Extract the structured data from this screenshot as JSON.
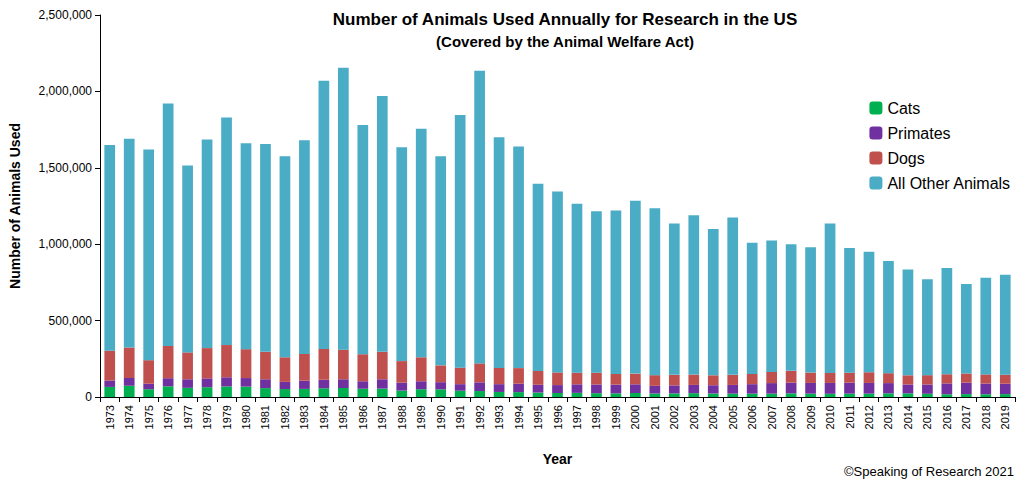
{
  "chart_data": {
    "type": "bar",
    "title": "Number of Animals Used Annually for Research in the US",
    "subtitle": "(Covered by the Animal Welfare Act)",
    "x_label": "Year",
    "y_label": "Number of Animals Used",
    "annotations": [
      "©Speaking of Research 2021"
    ],
    "categories": [
      "1973",
      "1974",
      "1975",
      "1976",
      "1977",
      "1978",
      "1979",
      "1980",
      "1981",
      "1982",
      "1983",
      "1984",
      "1985",
      "1986",
      "1987",
      "1988",
      "1989",
      "1990",
      "1991",
      "1992",
      "1993",
      "1994",
      "1995",
      "1996",
      "1997",
      "1998",
      "1999",
      "2000",
      "2001",
      "2002",
      "2003",
      "2004",
      "2005",
      "2006",
      "2007",
      "2008",
      "2009",
      "2010",
      "2011",
      "2012",
      "2013",
      "2014",
      "2015",
      "2016",
      "2017",
      "2018",
      "2019"
    ],
    "series": [
      {
        "name": "Cats",
        "color": "#00b050",
        "values": [
          66000,
          74000,
          51000,
          70000,
          60000,
          64000,
          69000,
          68000,
          58000,
          52000,
          53000,
          57000,
          59000,
          54000,
          55000,
          42000,
          51000,
          50000,
          41000,
          39000,
          33000,
          32000,
          29000,
          26000,
          27000,
          25000,
          24000,
          26000,
          23000,
          24000,
          25000,
          23000,
          22000,
          22000,
          22000,
          24000,
          22000,
          21000,
          22000,
          22000,
          24000,
          24000,
          21000,
          18000,
          19000,
          18000,
          19000
        ]
      },
      {
        "name": "Primates",
        "color": "#7030a0",
        "values": [
          42000,
          51000,
          36000,
          53000,
          56000,
          58000,
          60000,
          56000,
          58000,
          47000,
          54000,
          56000,
          57000,
          49000,
          61000,
          52000,
          52000,
          47000,
          43000,
          57000,
          51000,
          55000,
          51000,
          52000,
          56000,
          57000,
          57000,
          57000,
          50000,
          52000,
          54000,
          54000,
          57000,
          62000,
          69000,
          70000,
          70000,
          71000,
          72000,
          70000,
          67000,
          58000,
          61000,
          71000,
          75000,
          70000,
          68000
        ]
      },
      {
        "name": "Dogs",
        "color": "#c0504d",
        "values": [
          195000,
          199000,
          154000,
          211000,
          176000,
          198000,
          211000,
          189000,
          180000,
          161000,
          175000,
          201000,
          194000,
          177000,
          180000,
          141000,
          157000,
          110000,
          108000,
          124000,
          106000,
          102000,
          90000,
          83000,
          76000,
          77000,
          70000,
          70000,
          70000,
          69000,
          68000,
          65000,
          66000,
          67000,
          73000,
          77000,
          68000,
          65000,
          65000,
          70000,
          65000,
          60000,
          61000,
          60000,
          60000,
          60000,
          59000
        ]
      },
      {
        "name": "All Other Animals",
        "color": "#4bacc6",
        "values": [
          1347000,
          1366000,
          1379000,
          1586000,
          1223000,
          1365000,
          1490000,
          1347000,
          1359000,
          1315000,
          1398000,
          1756000,
          1845000,
          1500000,
          1674000,
          1400000,
          1495000,
          1368000,
          1653000,
          1915000,
          1510000,
          1451000,
          1225000,
          1184000,
          1106000,
          1056000,
          1069000,
          1132000,
          1092000,
          990000,
          1043000,
          958000,
          1030000,
          859000,
          861000,
          829000,
          820000,
          978000,
          816000,
          788000,
          734000,
          693000,
          627000,
          696000,
          586000,
          632000,
          654000
        ]
      }
    ],
    "ylim": [
      0,
      2500000
    ],
    "yticks": [
      0,
      {
        "value": 500000,
        "label": "500,000"
      },
      {
        "value": 1000000,
        "label": "1,000,000"
      },
      {
        "value": 1500000,
        "label": "1,500,000"
      },
      {
        "value": 2000000,
        "label": "2,000,000"
      },
      {
        "value": 2500000,
        "label": "2,500,000"
      }
    ],
    "stacked": true,
    "grid": false,
    "legend": "top-right"
  }
}
